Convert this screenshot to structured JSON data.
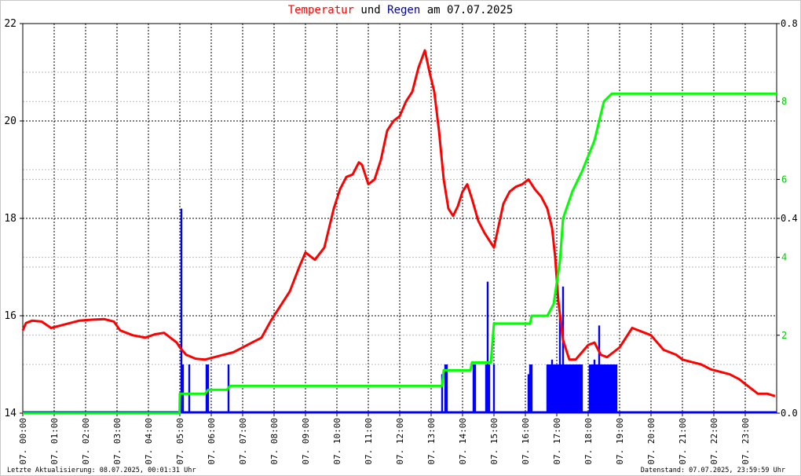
{
  "title": {
    "part1": "Temperatur",
    "part2": " und ",
    "part3": "Regen",
    "part4": " am 07.07.2025",
    "color1": "#ff0000",
    "color3": "#0000a0",
    "color_other": "#000000"
  },
  "footer": {
    "left": "Letzte Aktualisierung: 08.07.2025, 00:01:31 Uhr",
    "right": "Datenstand: 07.07.2025, 23:59:59 Uhr"
  },
  "chart_data": {
    "type": "line",
    "x_unit": "hour",
    "xlim": [
      0,
      24
    ],
    "x_ticks": [
      "07. 00:00",
      "07. 01:00",
      "07. 02:00",
      "07. 03:00",
      "07. 04:00",
      "07. 05:00",
      "07. 06:00",
      "07. 07:00",
      "07. 08:00",
      "07. 09:00",
      "07. 10:00",
      "07. 11:00",
      "07. 12:00",
      "07. 13:00",
      "07. 14:00",
      "07. 15:00",
      "07. 16:00",
      "07. 17:00",
      "07. 18:00",
      "07. 19:00",
      "07. 20:00",
      "07. 21:00",
      "07. 22:00",
      "07. 23:00"
    ],
    "y_left": {
      "ylim": [
        14,
        22
      ],
      "ticks": [
        "14",
        "16",
        "18",
        "20",
        "22"
      ]
    },
    "y_right_cumulative": {
      "ylim": [
        0,
        10
      ],
      "ticks": [
        "2",
        "4",
        "6",
        "8"
      ]
    },
    "y_right_rain": {
      "ylim": [
        0,
        0.8
      ],
      "ticks": [
        "0.0",
        "0.4",
        "0.8"
      ]
    },
    "grid": true,
    "series": [
      {
        "color": "#ff0000",
        "axis": "left",
        "x": [
          0.0,
          0.1,
          0.3,
          0.6,
          0.9,
          1.2,
          1.5,
          1.8,
          2.2,
          2.6,
          2.9,
          3.1,
          3.5,
          3.9,
          4.2,
          4.5,
          4.7,
          4.9,
          5.0,
          5.2,
          5.5,
          5.8,
          6.1,
          6.4,
          6.7,
          7.0,
          7.3,
          7.6,
          7.9,
          8.2,
          8.5,
          8.8,
          9.0,
          9.3,
          9.6,
          9.9,
          10.1,
          10.3,
          10.5,
          10.7,
          10.8,
          11.0,
          11.2,
          11.4,
          11.6,
          11.8,
          12.0,
          12.2,
          12.4,
          12.6,
          12.8,
          12.95,
          13.1,
          13.25,
          13.4,
          13.55,
          13.7,
          13.85,
          14.0,
          14.15,
          14.3,
          14.5,
          14.7,
          14.9,
          15.0,
          15.1,
          15.3,
          15.5,
          15.7,
          15.9,
          16.1,
          16.3,
          16.5,
          16.7,
          16.85,
          16.95,
          17.05,
          17.2,
          17.4,
          17.6,
          17.8,
          18.0,
          18.2,
          18.4,
          18.6,
          18.8,
          19.0,
          19.2,
          19.4,
          19.6,
          19.8,
          20.0,
          20.2,
          20.4,
          20.6,
          20.8,
          21.0,
          21.3,
          21.6,
          21.9,
          22.2,
          22.5,
          22.8,
          23.1,
          23.4,
          23.7,
          23.95
        ],
        "values": [
          15.7,
          15.85,
          15.9,
          15.88,
          15.75,
          15.8,
          15.85,
          15.9,
          15.92,
          15.93,
          15.88,
          15.7,
          15.6,
          15.55,
          15.62,
          15.65,
          15.55,
          15.45,
          15.35,
          15.2,
          15.12,
          15.1,
          15.15,
          15.2,
          15.25,
          15.35,
          15.45,
          15.55,
          15.9,
          16.2,
          16.5,
          17.0,
          17.3,
          17.15,
          17.4,
          18.2,
          18.6,
          18.85,
          18.9,
          19.15,
          19.1,
          18.7,
          18.8,
          19.2,
          19.8,
          20.0,
          20.1,
          20.4,
          20.6,
          21.1,
          21.45,
          21.0,
          20.6,
          19.8,
          18.8,
          18.2,
          18.05,
          18.25,
          18.55,
          18.7,
          18.4,
          17.95,
          17.7,
          17.5,
          17.4,
          17.7,
          18.3,
          18.55,
          18.65,
          18.7,
          18.8,
          18.6,
          18.45,
          18.2,
          17.8,
          17.2,
          16.3,
          15.5,
          15.1,
          15.1,
          15.25,
          15.4,
          15.45,
          15.2,
          15.15,
          15.25,
          15.35,
          15.55,
          15.75,
          15.7,
          15.65,
          15.6,
          15.45,
          15.3,
          15.25,
          15.2,
          15.1,
          15.05,
          15.0,
          14.9,
          14.85,
          14.8,
          14.7,
          14.55,
          14.4,
          14.4,
          14.35
        ]
      },
      {
        "color": "#00ff00",
        "axis": "right_cumulative",
        "x": [
          0.0,
          4.99,
          5.0,
          5.8,
          5.9,
          6.5,
          6.6,
          13.35,
          13.4,
          14.25,
          14.3,
          14.9,
          15.0,
          16.15,
          16.2,
          16.7,
          16.9,
          17.1,
          17.2,
          17.5,
          17.8,
          18.2,
          18.5,
          18.75,
          18.85,
          24.0
        ],
        "values": [
          0,
          0,
          0.5,
          0.5,
          0.6,
          0.6,
          0.7,
          0.7,
          1.1,
          1.1,
          1.3,
          1.3,
          2.3,
          2.3,
          2.5,
          2.5,
          2.8,
          3.9,
          5.0,
          5.7,
          6.2,
          7.0,
          8.0,
          8.2,
          8.2,
          8.2
        ]
      }
    ],
    "bars": {
      "color": "#0000ff",
      "axis": "right_rain",
      "x": [
        5.05,
        5.1,
        5.3,
        5.85,
        5.9,
        6.55,
        13.35,
        13.45,
        13.5,
        14.35,
        14.4,
        14.75,
        14.8,
        14.85,
        15.0,
        16.1,
        16.15,
        16.2,
        16.7,
        16.75,
        16.8,
        16.85,
        16.9,
        16.95,
        17.0,
        17.05,
        17.1,
        17.15,
        17.2,
        17.25,
        17.3,
        17.35,
        17.4,
        17.45,
        17.5,
        17.55,
        17.6,
        17.65,
        17.7,
        17.75,
        17.8,
        18.05,
        18.1,
        18.15,
        18.2,
        18.25,
        18.3,
        18.35,
        18.4,
        18.45,
        18.5,
        18.55,
        18.6,
        18.65,
        18.7,
        18.75,
        18.8,
        18.85,
        18.9
      ],
      "values": [
        0.42,
        0.1,
        0.1,
        0.1,
        0.1,
        0.1,
        0.08,
        0.1,
        0.1,
        0.1,
        0.1,
        0.1,
        0.27,
        0.1,
        0.1,
        0.08,
        0.1,
        0.1,
        0.1,
        0.1,
        0.1,
        0.11,
        0.1,
        0.1,
        0.1,
        0.1,
        0.2,
        0.1,
        0.26,
        0.1,
        0.1,
        0.1,
        0.1,
        0.1,
        0.1,
        0.1,
        0.1,
        0.1,
        0.1,
        0.1,
        0.1,
        0.1,
        0.1,
        0.1,
        0.11,
        0.1,
        0.1,
        0.18,
        0.1,
        0.1,
        0.1,
        0.1,
        0.1,
        0.1,
        0.1,
        0.1,
        0.1,
        0.1,
        0.1
      ]
    }
  }
}
